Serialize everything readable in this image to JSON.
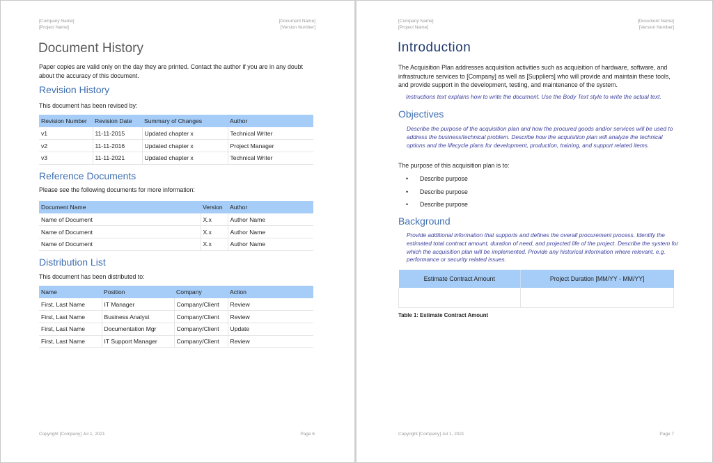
{
  "left_page": {
    "header": {
      "company": "[Company Name]",
      "project": "[Project Name]",
      "document": "[Document Name]",
      "version": "[Version Number]"
    },
    "title": "Document History",
    "intro": "Paper copies are valid only on the day they are printed. Contact the author if you are in any doubt about the accuracy of this document.",
    "revision": {
      "heading": "Revision History",
      "text": "This document has been revised by:",
      "columns": [
        "Revision Number",
        "Revision Date",
        "Summary of Changes",
        "Author"
      ],
      "rows": [
        [
          "v1",
          "11-11-2015",
          "Updated chapter x",
          "Technical Writer"
        ],
        [
          "v2",
          "11-11-2016",
          "Updated chapter x",
          "Project Manager"
        ],
        [
          "v3",
          "11-11-2021",
          "Updated chapter x",
          "Technical Writer"
        ]
      ]
    },
    "reference": {
      "heading": "Reference Documents",
      "text": "Please see the following documents for more information:",
      "columns": [
        "Document Name",
        "Version",
        "Author"
      ],
      "rows": [
        [
          "Name of Document",
          "X.x",
          "Author Name"
        ],
        [
          "Name of Document",
          "X.x",
          "Author Name"
        ],
        [
          "Name of Document",
          "X.x",
          "Author Name"
        ]
      ]
    },
    "distribution": {
      "heading": "Distribution List",
      "text": "This document has been distributed to:",
      "columns": [
        "Name",
        "Position",
        "Company",
        "Action"
      ],
      "rows": [
        [
          "First, Last Name",
          "IT Manager",
          "Company/Client",
          "Review"
        ],
        [
          "First, Last Name",
          "Business Analyst",
          "Company/Client",
          "Review"
        ],
        [
          "First, Last Name",
          "Documentation Mgr",
          "Company/Client",
          "Update"
        ],
        [
          "First, Last Name",
          "IT Support Manager",
          "Company/Client",
          "Review"
        ]
      ]
    },
    "footer": {
      "copyright": "Copyright [Company] Jul 1, 2021",
      "page": "Page 6"
    }
  },
  "right_page": {
    "header": {
      "company": "[Company Name]",
      "project": "[Project Name]",
      "document": "[Document Name]",
      "version": "[Version Number]"
    },
    "title": "Introduction",
    "intro": "The Acquisition Plan addresses acquisition activities such as acquisition of hardware, software, and infrastructure services to [Company] as well as [Suppliers] who will provide and maintain these tools, and provide support in the development, testing, and maintenance of the system.",
    "instructions": "Instructions text explains how to write the document. Use the Body Text style to write the actual text.",
    "objectives": {
      "heading": "Objectives",
      "instructions": "Describe the purpose of the acquisition plan and how the procured goods and/or services will be used to address the business/technical problem. Describe how the acquisition plan will analyze the technical options and the lifecycle plans for development, production, training, and support related items.",
      "text": "The purpose of this acquisition plan is to:",
      "bullets": [
        "Describe purpose",
        "Describe purpose",
        "Describe purpose"
      ]
    },
    "background": {
      "heading": "Background",
      "instructions": "Provide additional information that supports and defines the overall procurement process. Identify the estimated total contract amount, duration of need, and projected life of the project. Describe the system for which the acquisition plan will be implemented. Provide any historical information where relevant, e.g. performance or security related issues.",
      "columns": [
        "Estimate Contract Amount",
        "Project Duration [MM/YY - MM/YY]"
      ],
      "caption": "Table 1: Estimate Contract Amount"
    },
    "footer": {
      "copyright": "Copyright [Company] Jul 1, 2021",
      "page": "Page 7"
    }
  },
  "colors": {
    "heading": "#3f6fb0",
    "title_right": "#1f3a6e",
    "table_header": "#a5cdf8",
    "instructions": "#3b3f9e"
  }
}
